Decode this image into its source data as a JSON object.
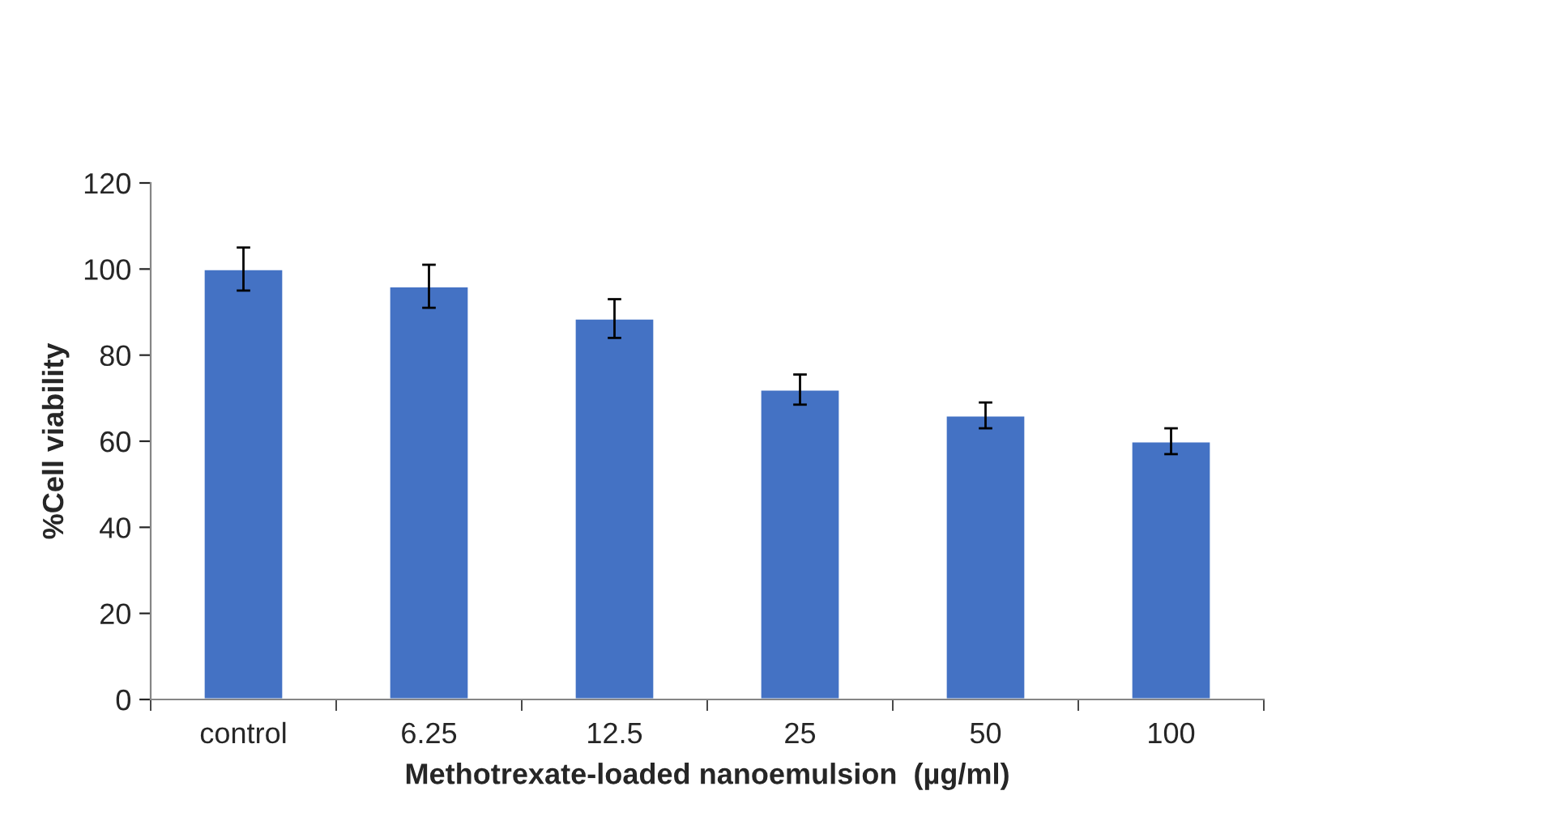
{
  "chart_data": {
    "type": "bar",
    "xlabel": "Methotrexate-loaded nanoemulsion  (µg/ml)",
    "ylabel": "%Cell viability",
    "categories": [
      "control",
      "6.25",
      "12.5",
      "25",
      "50",
      "100"
    ],
    "values": [
      100,
      96,
      88.5,
      72,
      66,
      60
    ],
    "errors": [
      5,
      5,
      4.5,
      3.5,
      3,
      3
    ],
    "color": "#4472c4",
    "ylim": [
      0,
      120
    ],
    "yticks": [
      0,
      20,
      40,
      60,
      80,
      100,
      120
    ],
    "grid": false,
    "legend": false
  }
}
